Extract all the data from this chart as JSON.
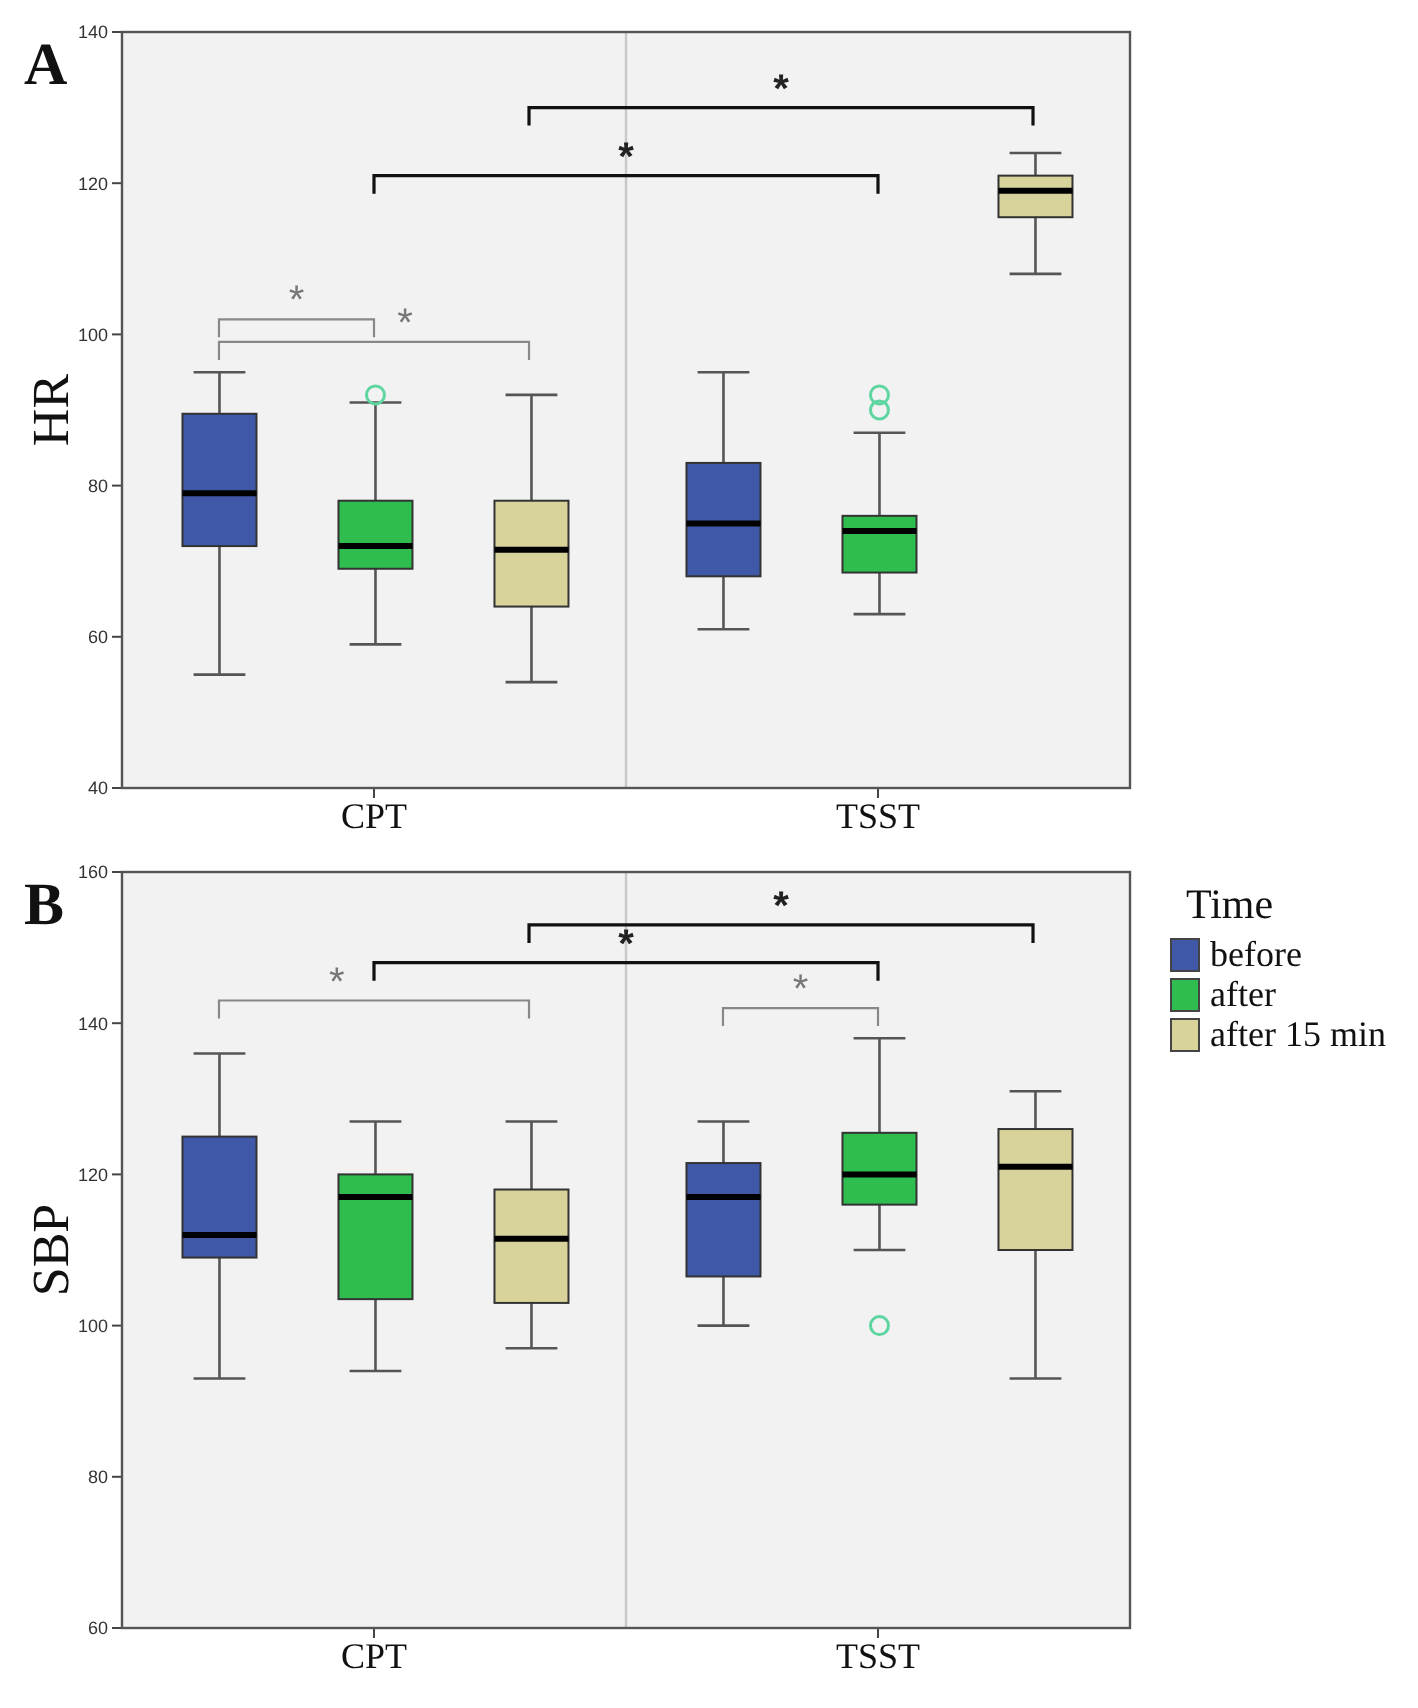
{
  "chart_data": [
    {
      "type": "box",
      "title": "A",
      "ylabel": "HR",
      "categories": [
        "CPT",
        "TSST"
      ],
      "ylim": [
        40,
        140
      ],
      "yticks": [
        40,
        60,
        80,
        100,
        120,
        140
      ],
      "legend": "right",
      "legend_title": "Time",
      "annotations": [
        "*",
        "*",
        "*",
        "*"
      ],
      "series": [
        {
          "name": "before",
          "color": "#3f58a8",
          "boxes": [
            {
              "low": 55,
              "q1": 72,
              "median": 79,
              "q3": 89.5,
              "high": 95
            },
            {
              "low": 61,
              "q1": 68,
              "median": 75,
              "q3": 83,
              "high": 95
            }
          ]
        },
        {
          "name": "after",
          "color": "#2ebd4e",
          "boxes": [
            {
              "low": 59,
              "q1": 69,
              "median": 72,
              "q3": 78,
              "high": 91,
              "outliers": [
                92
              ]
            },
            {
              "low": 63,
              "q1": 68.5,
              "median": 74,
              "q3": 76,
              "high": 87,
              "outliers": [
                90,
                92
              ]
            }
          ]
        },
        {
          "name": "after 15 min",
          "color": "#d8d29b",
          "boxes": [
            {
              "low": 54,
              "q1": 64,
              "median": 71.5,
              "q3": 78,
              "high": 92
            },
            {
              "low": 108,
              "q1": 115.5,
              "median": 119,
              "q3": 121,
              "high": 124
            }
          ]
        }
      ]
    },
    {
      "type": "box",
      "title": "B",
      "ylabel": "SBP",
      "categories": [
        "CPT",
        "TSST"
      ],
      "ylim": [
        60,
        160
      ],
      "yticks": [
        60,
        80,
        100,
        120,
        140,
        160
      ],
      "annotations": [
        "*",
        "*",
        "*",
        "*"
      ],
      "series": [
        {
          "color": "#3f58a8",
          "boxes": [
            {
              "low": 93,
              "q1": 109,
              "median": 112,
              "q3": 125,
              "high": 136
            },
            {
              "low": 100,
              "q1": 106.5,
              "median": 117,
              "q3": 121.5,
              "high": 127
            }
          ]
        },
        {
          "color": "#2ebd4e",
          "boxes": [
            {
              "low": 94,
              "q1": 103.5,
              "median": 117,
              "q3": 120,
              "high": 127
            },
            {
              "low": 110,
              "q1": 116,
              "median": 120,
              "q3": 125.5,
              "high": 138,
              "outliers": [
                100
              ]
            }
          ]
        },
        {
          "color": "#d8d29b",
          "boxes": [
            {
              "low": 97,
              "q1": 103,
              "median": 111.5,
              "q3": 118,
              "high": 127
            },
            {
              "low": 93,
              "q1": 110,
              "median": 121,
              "q3": 126,
              "high": 131
            }
          ]
        }
      ]
    }
  ]
}
